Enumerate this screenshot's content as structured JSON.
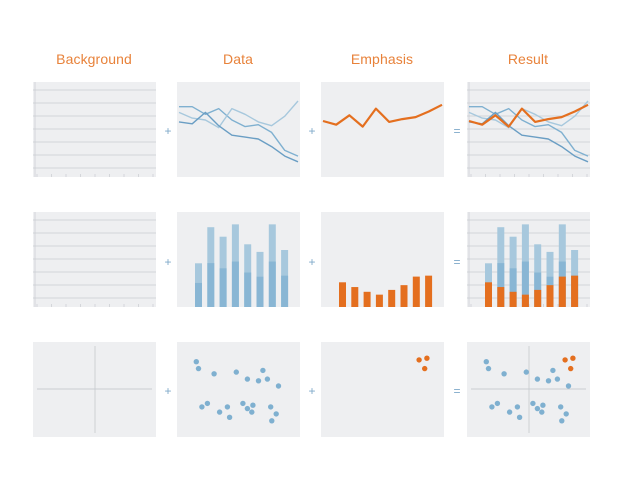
{
  "columns": [
    {
      "key": "background",
      "title": "Background"
    },
    {
      "key": "data",
      "title": "Data"
    },
    {
      "key": "emphasis",
      "title": "Emphasis"
    },
    {
      "key": "result",
      "title": "Result"
    }
  ],
  "operators": [
    "+",
    "+",
    "="
  ],
  "colors": {
    "title": "#e8823a",
    "panel": "#eeeff1",
    "grid": "#c9ccd1",
    "series_light": "#a7c8dd",
    "series_mid": "#7fb0d0",
    "series_dark": "#6a9ec4",
    "emphasis": "#e46f1f",
    "operator": "#7ea8c9"
  },
  "chart_data": [
    {
      "type": "line",
      "row": "line",
      "x": [
        0,
        1,
        2,
        3,
        4,
        5,
        6,
        7,
        8,
        9
      ],
      "series": [
        {
          "role": "data",
          "values": [
            74,
            74,
            66,
            72,
            60,
            53,
            55,
            47,
            28,
            22
          ]
        },
        {
          "role": "data",
          "values": [
            68,
            62,
            60,
            52,
            72,
            66,
            58,
            54,
            64,
            80
          ]
        },
        {
          "role": "data",
          "values": [
            58,
            56,
            68,
            54,
            44,
            42,
            40,
            32,
            22,
            16
          ]
        },
        {
          "role": "emphasis",
          "values": [
            59,
            55,
            65,
            53,
            72,
            58,
            61,
            63,
            69,
            76
          ]
        }
      ],
      "ylim": [
        0,
        100
      ],
      "grid": true
    },
    {
      "type": "bar",
      "row": "bar",
      "categories": [
        "1",
        "2",
        "3",
        "4",
        "5",
        "6",
        "7",
        "8"
      ],
      "series": [
        {
          "role": "data",
          "values": [
            46,
            84,
            74,
            87,
            66,
            58,
            87,
            60
          ]
        },
        {
          "role": "emphasis",
          "values": [
            26,
            21,
            16,
            13,
            18,
            23,
            32,
            33
          ]
        }
      ],
      "ylim": [
        0,
        100
      ],
      "grid": true
    },
    {
      "type": "scatter",
      "row": "scatter",
      "points": [
        {
          "role": "data",
          "x": 17,
          "y": 30
        },
        {
          "role": "data",
          "x": 22,
          "y": 34
        },
        {
          "role": "data",
          "x": 33,
          "y": 24
        },
        {
          "role": "data",
          "x": 40,
          "y": 30
        },
        {
          "role": "data",
          "x": 42,
          "y": 18
        },
        {
          "role": "data",
          "x": 54,
          "y": 34
        },
        {
          "role": "data",
          "x": 58,
          "y": 28
        },
        {
          "role": "data",
          "x": 62,
          "y": 24
        },
        {
          "role": "data",
          "x": 63,
          "y": 32
        },
        {
          "role": "data",
          "x": 79,
          "y": 30
        },
        {
          "role": "data",
          "x": 80,
          "y": 14
        },
        {
          "role": "data",
          "x": 84,
          "y": 22
        },
        {
          "role": "data",
          "x": 68,
          "y": 60
        },
        {
          "role": "data",
          "x": 86,
          "y": 54
        },
        {
          "role": "data",
          "x": 14,
          "y": 74
        },
        {
          "role": "data",
          "x": 28,
          "y": 68
        },
        {
          "role": "data",
          "x": 48,
          "y": 70
        },
        {
          "role": "data",
          "x": 58,
          "y": 62
        },
        {
          "role": "data",
          "x": 72,
          "y": 72
        },
        {
          "role": "data",
          "x": 76,
          "y": 62
        },
        {
          "role": "data",
          "x": 12,
          "y": 82
        },
        {
          "role": "emphasis",
          "x": 83,
          "y": 84
        },
        {
          "role": "emphasis",
          "x": 90,
          "y": 86
        },
        {
          "role": "emphasis",
          "x": 88,
          "y": 74
        }
      ],
      "xlim": [
        0,
        100
      ],
      "ylim": [
        0,
        100
      ],
      "grid": false
    }
  ]
}
